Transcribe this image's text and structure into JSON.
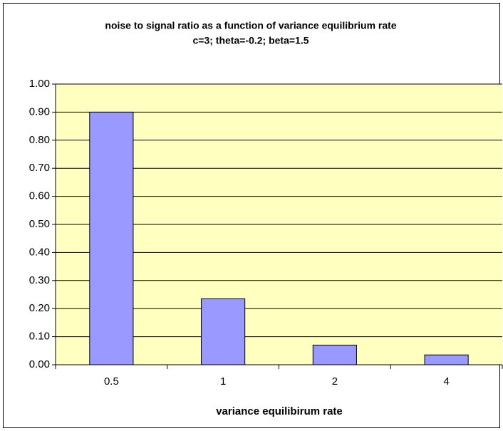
{
  "chart_data": {
    "type": "bar",
    "title": "noise to signal ratio as a function of variance equilibrium rate",
    "subtitle": "c=3; theta=-0.2; beta=1.5",
    "x_label": "variance equilibirum rate",
    "categories": [
      "0.5",
      "1",
      "2",
      "4"
    ],
    "values": [
      0.9,
      0.235,
      0.07,
      0.035
    ],
    "color": "#9999ff",
    "ylim": [
      0,
      1
    ],
    "yticks": [
      {
        "value": 0,
        "label": "0.00"
      },
      {
        "value": 0.1,
        "label": "0.10"
      },
      {
        "value": 0.2,
        "label": "0.20"
      },
      {
        "value": 0.3,
        "label": "0.30"
      },
      {
        "value": 0.4,
        "label": "0.40"
      },
      {
        "value": 0.5,
        "label": "0.50"
      },
      {
        "value": 0.6,
        "label": "0.60"
      },
      {
        "value": 0.7,
        "label": "0.70"
      },
      {
        "value": 0.8,
        "label": "0.80"
      },
      {
        "value": 0.9,
        "label": "0.90"
      },
      {
        "value": 1,
        "label": "1.00"
      }
    ],
    "grid": true
  }
}
